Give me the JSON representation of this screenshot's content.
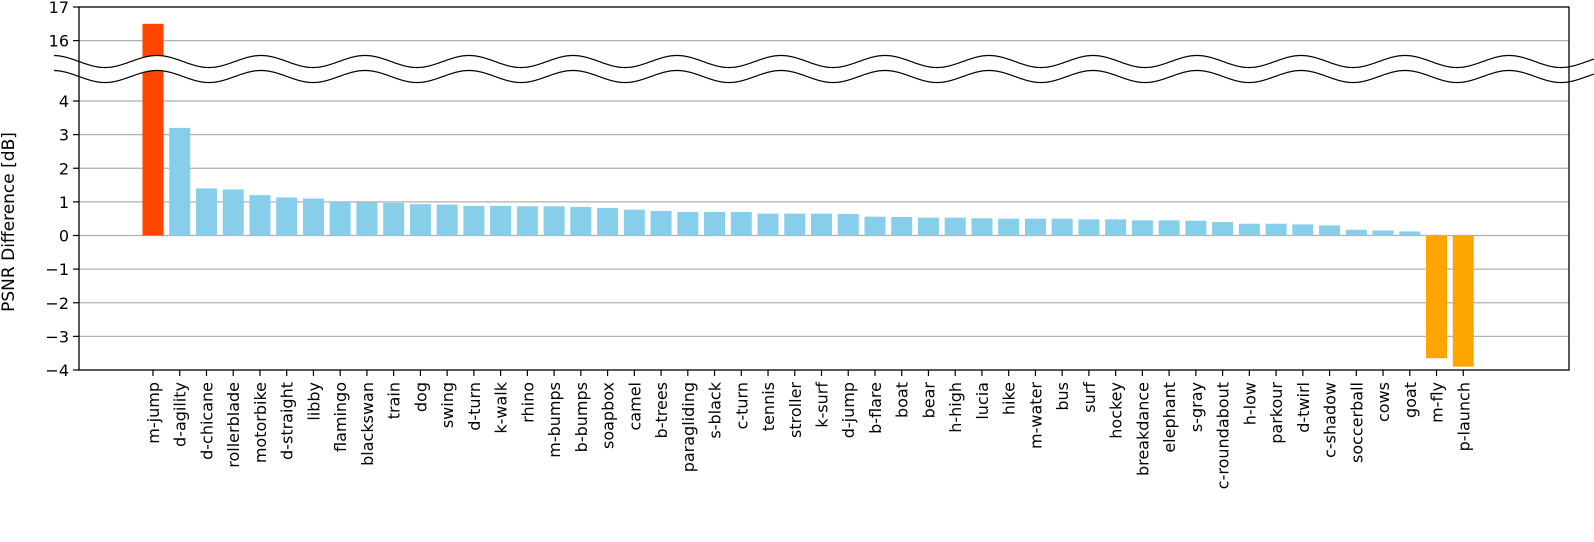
{
  "chart_data": {
    "type": "bar",
    "title": "",
    "xlabel": "",
    "ylabel": "PSNR Difference [dB]",
    "ylim": [
      -4,
      17
    ],
    "axis_break": {
      "lower_max": 4.9,
      "upper_min": 15.1
    },
    "yticks_lower": [
      "−4",
      "−3",
      "−2",
      "−1",
      "0",
      "1",
      "2",
      "3",
      "4"
    ],
    "yticks_upper": [
      "16",
      "17"
    ],
    "grid": "horizontal",
    "colors": {
      "max": "#FF4500",
      "positive": "#87CEEB",
      "negative": "#FFA500"
    },
    "categories": [
      "m-jump",
      "d-agility",
      "d-chicane",
      "rollerblade",
      "motorbike",
      "d-straight",
      "libby",
      "flamingo",
      "blackswan",
      "train",
      "dog",
      "swing",
      "d-turn",
      "k-walk",
      "rhino",
      "m-bumps",
      "b-bumps",
      "soapbox",
      "camel",
      "b-trees",
      "paragliding",
      "s-black",
      "c-turn",
      "tennis",
      "stroller",
      "k-surf",
      "d-jump",
      "b-flare",
      "boat",
      "bear",
      "h-high",
      "lucia",
      "hike",
      "m-water",
      "bus",
      "surf",
      "hockey",
      "breakdance",
      "elephant",
      "s-gray",
      "c-roundabout",
      "h-low",
      "parkour",
      "d-twirl",
      "c-shadow",
      "soccerball",
      "cows",
      "goat",
      "m-fly",
      "p-launch"
    ],
    "values": [
      16.5,
      3.2,
      1.4,
      1.37,
      1.2,
      1.13,
      1.1,
      1.0,
      0.98,
      0.97,
      0.93,
      0.92,
      0.88,
      0.88,
      0.87,
      0.87,
      0.85,
      0.82,
      0.77,
      0.73,
      0.7,
      0.7,
      0.7,
      0.65,
      0.65,
      0.65,
      0.64,
      0.56,
      0.55,
      0.53,
      0.53,
      0.51,
      0.5,
      0.5,
      0.5,
      0.48,
      0.48,
      0.45,
      0.45,
      0.44,
      0.4,
      0.35,
      0.35,
      0.33,
      0.3,
      0.17,
      0.15,
      0.12,
      -3.65,
      -3.9
    ]
  }
}
